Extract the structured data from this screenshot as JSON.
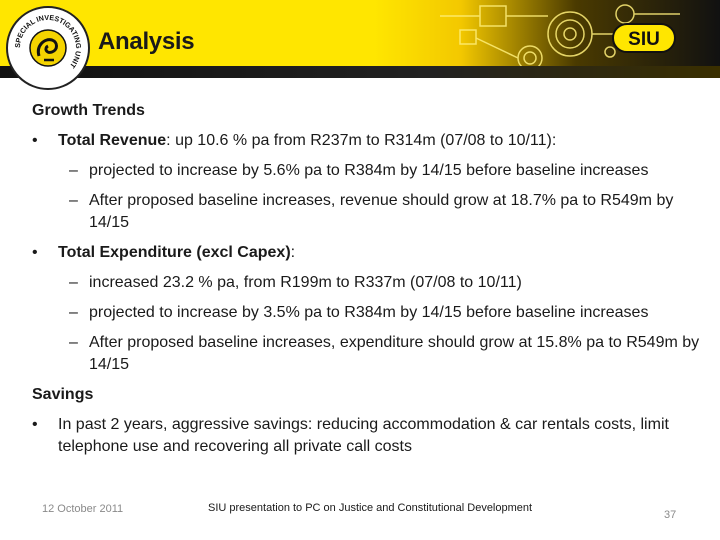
{
  "header": {
    "title": "Analysis",
    "crest_text": "SPECIAL INVESTIGATING UNIT",
    "logo_text": "SIU",
    "colors": {
      "banner": "#ffe600",
      "dark": "#111111",
      "accent": "#f3c800"
    }
  },
  "content": {
    "growth_heading": "Growth Trends",
    "bullets": [
      {
        "mark": "•",
        "bold": "Total Revenue",
        "rest": ": up 10.6 % pa from R237m to R314m (07/08 to 10/11):",
        "subs": [
          {
            "mark": "–",
            "text": "projected to increase by 5.6% pa to R384m by 14/15 before baseline increases"
          },
          {
            "mark": "–",
            "text": "After proposed baseline increases, revenue should grow at 18.7% pa to R549m by 14/15"
          }
        ]
      },
      {
        "mark": "•",
        "bold": "Total Expenditure (excl Capex)",
        "rest": ":",
        "subs": [
          {
            "mark": "–",
            "text": "increased 23.2 % pa, from R199m to R337m  (07/08 to 10/11)"
          },
          {
            "mark": "–",
            "text": "projected to increase by 3.5% pa to R384m by 14/15 before baseline increases"
          },
          {
            "mark": "–",
            "text": "After proposed baseline increases, expenditure should grow at 15.8% pa to R549m by 14/15"
          }
        ]
      }
    ],
    "savings_heading": "Savings",
    "savings_bullet": {
      "mark": "•",
      "text": "In past 2 years, aggressive savings: reducing accommodation & car rentals costs, limit telephone use and recovering all private call costs"
    }
  },
  "footer": {
    "date": "12 October 2011",
    "center": "SIU presentation to PC on Justice and Constitutional Development",
    "page": "37"
  }
}
